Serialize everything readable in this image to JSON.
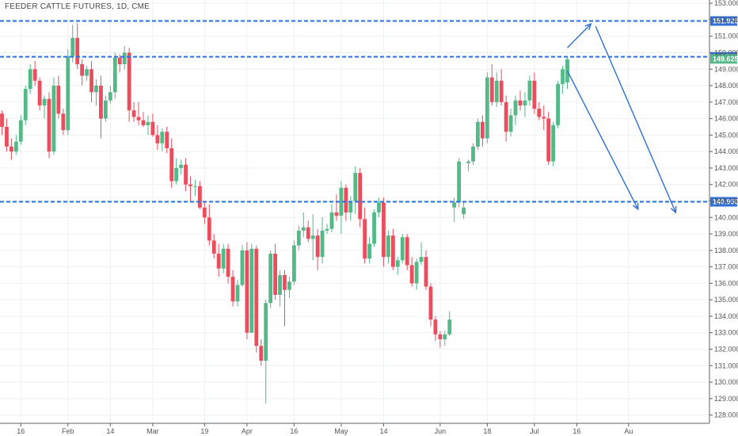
{
  "header": {
    "title": "FEEDER CATTLE FUTURES, 1D, CME"
  },
  "colors": {
    "up": "#53b987",
    "down": "#eb4d5c",
    "level": "#2f6fd6",
    "arrow": "#2f6fd6",
    "grid": "#eef1f4",
    "axis": "#5d606b"
  },
  "chart_data": {
    "type": "candlestick",
    "title": "FEEDER CATTLE FUTURES, 1D, CME",
    "ylim": [
      127.5,
      153.2
    ],
    "y_ticks": [
      "128.000",
      "129.000",
      "130.000",
      "131.000",
      "132.000",
      "133.000",
      "134.000",
      "135.000",
      "136.000",
      "137.000",
      "138.000",
      "139.000",
      "140.000",
      "141.000",
      "142.000",
      "143.000",
      "144.000",
      "145.000",
      "146.000",
      "147.000",
      "148.000",
      "149.000",
      "150.000",
      "151.000",
      "152.000",
      "153.000"
    ],
    "x_ticks": [
      {
        "i": 4,
        "label": "16"
      },
      {
        "i": 14,
        "label": "Feb"
      },
      {
        "i": 23,
        "label": "14"
      },
      {
        "i": 32,
        "label": "Mar"
      },
      {
        "i": 43,
        "label": "19"
      },
      {
        "i": 52,
        "label": "Apr"
      },
      {
        "i": 62,
        "label": "16"
      },
      {
        "i": 72,
        "label": "May"
      },
      {
        "i": 81,
        "label": "14"
      },
      {
        "i": 93,
        "label": "Jun"
      },
      {
        "i": 103,
        "label": "18"
      },
      {
        "i": 113,
        "label": "Jul"
      },
      {
        "i": 122,
        "label": "16"
      },
      {
        "i": 133,
        "label": "Au"
      }
    ],
    "candles": [
      [
        146.3,
        146.5,
        145.0,
        145.5
      ],
      [
        145.5,
        146.0,
        144.0,
        144.3
      ],
      [
        144.3,
        144.8,
        143.5,
        144.0
      ],
      [
        144.0,
        145.0,
        143.8,
        144.6
      ],
      [
        144.6,
        146.2,
        144.4,
        145.9
      ],
      [
        145.9,
        148.0,
        145.6,
        147.8
      ],
      [
        147.8,
        149.3,
        147.5,
        149.0
      ],
      [
        149.0,
        149.5,
        148.0,
        148.3
      ],
      [
        148.3,
        148.5,
        146.5,
        146.8
      ],
      [
        146.8,
        147.4,
        146.0,
        147.2
      ],
      [
        147.2,
        147.6,
        143.6,
        144.0
      ],
      [
        144.0,
        148.5,
        143.8,
        148.0
      ],
      [
        148.0,
        148.6,
        146.0,
        146.3
      ],
      [
        146.3,
        146.6,
        145.0,
        145.3
      ],
      [
        145.3,
        150.2,
        145.0,
        149.8
      ],
      [
        149.8,
        151.7,
        149.4,
        150.9
      ],
      [
        150.9,
        151.8,
        149.0,
        149.3
      ],
      [
        149.3,
        149.6,
        148.0,
        148.6
      ],
      [
        148.6,
        149.2,
        148.3,
        149.0
      ],
      [
        149.0,
        149.5,
        147.0,
        147.6
      ],
      [
        147.6,
        148.4,
        146.8,
        148.0
      ],
      [
        148.0,
        148.6,
        144.8,
        146.0
      ],
      [
        146.0,
        147.4,
        145.8,
        147.1
      ],
      [
        147.1,
        148.0,
        146.9,
        147.6
      ],
      [
        147.6,
        150.0,
        147.2,
        149.7
      ],
      [
        149.7,
        149.9,
        148.8,
        149.3
      ],
      [
        149.3,
        150.4,
        149.0,
        150.0
      ],
      [
        150.0,
        150.3,
        145.8,
        146.5
      ],
      [
        146.5,
        147.0,
        145.8,
        146.1
      ],
      [
        146.1,
        147.0,
        145.6,
        145.9
      ],
      [
        145.9,
        146.4,
        145.5,
        145.6
      ],
      [
        145.6,
        146.2,
        145.0,
        145.8
      ],
      [
        145.8,
        146.3,
        144.9,
        145.0
      ],
      [
        145.0,
        145.6,
        144.1,
        144.5
      ],
      [
        144.5,
        145.4,
        144.0,
        145.2
      ],
      [
        145.2,
        145.5,
        143.9,
        144.2
      ],
      [
        144.2,
        144.8,
        141.8,
        142.2
      ],
      [
        142.2,
        143.6,
        142.0,
        143.0
      ],
      [
        143.0,
        143.5,
        142.6,
        143.2
      ],
      [
        143.2,
        143.6,
        141.6,
        142.0
      ],
      [
        142.0,
        142.5,
        141.0,
        141.9
      ],
      [
        141.9,
        142.3,
        141.3,
        141.9
      ],
      [
        141.9,
        142.2,
        140.5,
        140.6
      ],
      [
        140.6,
        141.0,
        139.6,
        140.0
      ],
      [
        140.0,
        140.8,
        138.3,
        138.6
      ],
      [
        138.6,
        139.0,
        137.5,
        137.8
      ],
      [
        137.8,
        138.4,
        136.4,
        136.9
      ],
      [
        136.9,
        138.4,
        136.6,
        138.1
      ],
      [
        138.1,
        138.4,
        136.0,
        136.4
      ],
      [
        136.4,
        136.8,
        134.6,
        134.9
      ],
      [
        134.9,
        136.2,
        134.6,
        135.9
      ],
      [
        135.9,
        138.3,
        135.8,
        138.0
      ],
      [
        138.0,
        138.5,
        132.6,
        133.0
      ],
      [
        133.0,
        138.4,
        133.0,
        138.1
      ],
      [
        138.1,
        138.3,
        131.8,
        132.2
      ],
      [
        132.2,
        132.6,
        131.0,
        131.3
      ],
      [
        131.3,
        135.0,
        128.7,
        134.8
      ],
      [
        134.8,
        138.0,
        134.5,
        137.8
      ],
      [
        137.8,
        138.4,
        135.0,
        135.3
      ],
      [
        135.3,
        136.8,
        134.6,
        136.5
      ],
      [
        136.5,
        136.8,
        133.4,
        135.6
      ],
      [
        135.6,
        136.4,
        135.1,
        136.1
      ],
      [
        136.1,
        138.6,
        135.9,
        138.3
      ],
      [
        138.3,
        139.5,
        138.0,
        139.2
      ],
      [
        139.2,
        140.3,
        138.8,
        139.4
      ],
      [
        139.4,
        139.8,
        138.5,
        138.7
      ],
      [
        138.7,
        140.2,
        137.4,
        138.9
      ],
      [
        138.9,
        139.3,
        136.8,
        137.6
      ],
      [
        137.6,
        140.0,
        137.2,
        139.2
      ],
      [
        139.2,
        139.6,
        139.0,
        139.3
      ],
      [
        139.3,
        140.8,
        139.1,
        140.3
      ],
      [
        140.3,
        141.4,
        139.8,
        140.1
      ],
      [
        140.1,
        142.2,
        139.0,
        141.8
      ],
      [
        141.8,
        142.0,
        139.8,
        140.3
      ],
      [
        140.3,
        141.3,
        139.8,
        141.0
      ],
      [
        141.0,
        143.1,
        140.2,
        142.7
      ],
      [
        142.7,
        143.0,
        139.4,
        139.9
      ],
      [
        139.9,
        140.6,
        137.2,
        137.5
      ],
      [
        137.5,
        138.8,
        137.2,
        138.4
      ],
      [
        138.4,
        140.5,
        138.2,
        140.3
      ],
      [
        140.3,
        141.2,
        140.0,
        140.9
      ],
      [
        140.9,
        141.2,
        137.0,
        137.6
      ],
      [
        137.6,
        139.2,
        137.2,
        138.9
      ],
      [
        138.9,
        139.3,
        136.8,
        137.0
      ],
      [
        137.0,
        137.6,
        136.5,
        137.4
      ],
      [
        137.4,
        139.0,
        137.2,
        138.8
      ],
      [
        138.8,
        139.0,
        136.8,
        137.1
      ],
      [
        137.1,
        137.6,
        135.8,
        136.0
      ],
      [
        136.0,
        137.5,
        135.6,
        137.3
      ],
      [
        137.3,
        138.5,
        137.1,
        137.6
      ],
      [
        137.6,
        138.0,
        135.6,
        135.8
      ],
      [
        135.8,
        136.0,
        133.4,
        133.8
      ],
      [
        133.8,
        134.0,
        132.5,
        132.9
      ],
      [
        132.9,
        133.1,
        132.1,
        132.6
      ],
      [
        132.6,
        133.1,
        132.2,
        132.9
      ],
      [
        132.9,
        134.3,
        132.8,
        133.8
      ],
      [
        140.6,
        141.2,
        139.7,
        140.9
      ],
      [
        140.9,
        143.6,
        140.6,
        143.4
      ],
      [
        140.2,
        141.0,
        139.9,
        140.6
      ],
      [
        143.3,
        143.5,
        142.8,
        143.4
      ],
      [
        143.4,
        144.5,
        143.2,
        144.3
      ],
      [
        144.3,
        146.0,
        144.1,
        145.8
      ],
      [
        145.8,
        146.2,
        144.3,
        144.8
      ],
      [
        144.8,
        148.8,
        144.5,
        148.5
      ],
      [
        148.5,
        149.3,
        146.8,
        147.0
      ],
      [
        147.0,
        148.8,
        146.7,
        148.3
      ],
      [
        148.3,
        149.0,
        146.8,
        147.0
      ],
      [
        147.0,
        147.4,
        144.6,
        145.2
      ],
      [
        145.2,
        146.6,
        144.9,
        146.2
      ],
      [
        146.2,
        147.4,
        145.6,
        147.1
      ],
      [
        147.1,
        147.7,
        146.5,
        146.8
      ],
      [
        146.8,
        147.6,
        146.1,
        147.1
      ],
      [
        147.1,
        148.6,
        146.8,
        148.3
      ],
      [
        148.3,
        148.8,
        146.3,
        146.6
      ],
      [
        146.6,
        147.0,
        145.9,
        146.1
      ],
      [
        146.1,
        146.8,
        145.3,
        146.0
      ],
      [
        146.0,
        146.4,
        143.2,
        143.4
      ],
      [
        143.4,
        145.8,
        143.1,
        145.6
      ],
      [
        145.6,
        148.3,
        145.4,
        148.1
      ],
      [
        148.1,
        149.2,
        147.5,
        149.0
      ],
      [
        148.2,
        149.8,
        147.8,
        149.6
      ]
    ],
    "levels": [
      {
        "value": 151.925,
        "label": "151.925"
      },
      {
        "value": 149.75,
        "label": "149.750"
      },
      {
        "value": 140.95,
        "label": "140.950"
      }
    ],
    "last_price": {
      "value": 149.625,
      "label": "149.625"
    },
    "projections": [
      {
        "from_i": 120,
        "from_v": 150.3,
        "to_i": 125,
        "to_v": 151.75
      },
      {
        "from_i": 126,
        "from_v": 151.6,
        "to_i": 143,
        "to_v": 140.3
      },
      {
        "from_i": 120,
        "from_v": 148.9,
        "to_i": 135,
        "to_v": 140.5
      }
    ]
  }
}
